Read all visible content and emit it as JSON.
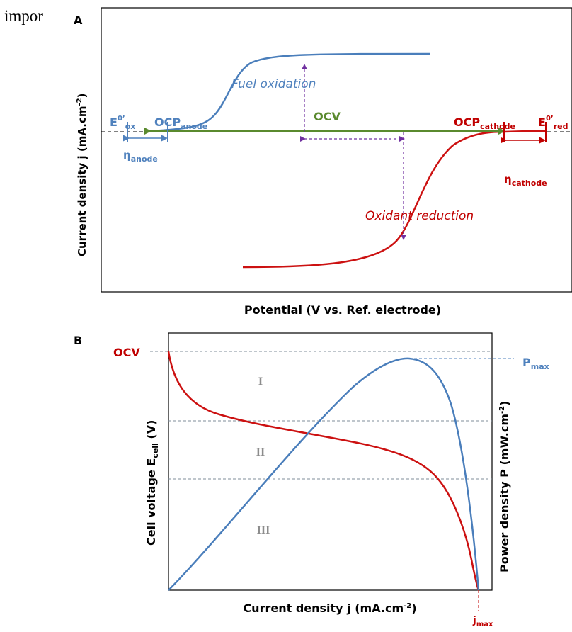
{
  "header_fragment": "impor",
  "colors": {
    "anode": "#4f81bd",
    "cathode": "#c00000",
    "ocv": "#5a8a2e",
    "arrow": "#7030a0",
    "blue_curve": "#4a7ebb",
    "red_curve": "#cc1111",
    "roman": "#8c8c8c"
  },
  "panel_a": {
    "letter": "A",
    "ylabel": "Current density j (mA.cm",
    "ylabel_sup": "-2",
    "ylabel_end": ")",
    "xlabel": "Potential (V vs. Ref. electrode)",
    "fuel_label": "Fuel oxidation",
    "oxidant_label": "Oxidant reduction",
    "ocv_label": "OCV",
    "e0ox": {
      "base": "E",
      "sup": "0’",
      "sub": "ox"
    },
    "ocp_anode": {
      "base": "OCP",
      "sub": "anode"
    },
    "ocp_cathode": {
      "base": "OCP",
      "sub": "cathode"
    },
    "e0red": {
      "base": "E",
      "sup": "0’",
      "sub": "red"
    },
    "eta_anode": {
      "base": "η",
      "sub": "anode"
    },
    "eta_cathode": {
      "base": "η",
      "sub": "cathode"
    }
  },
  "panel_b": {
    "letter": "B",
    "ocv_label": "OCV",
    "pmax": {
      "base": "P",
      "sub": "max"
    },
    "jmax": {
      "base": "j",
      "sub": "max"
    },
    "ylabel_left": {
      "base": "Cell voltage E",
      "sub": "cell",
      "end": " (V)"
    },
    "ylabel_right": {
      "base": "Power density P (mW.cm",
      "sup": "-2",
      "end": ")"
    },
    "xlabel": {
      "base": "Current density j (mA.cm",
      "sup": "-2",
      "end": ")"
    },
    "regions": [
      "I",
      "II",
      "III"
    ]
  }
}
